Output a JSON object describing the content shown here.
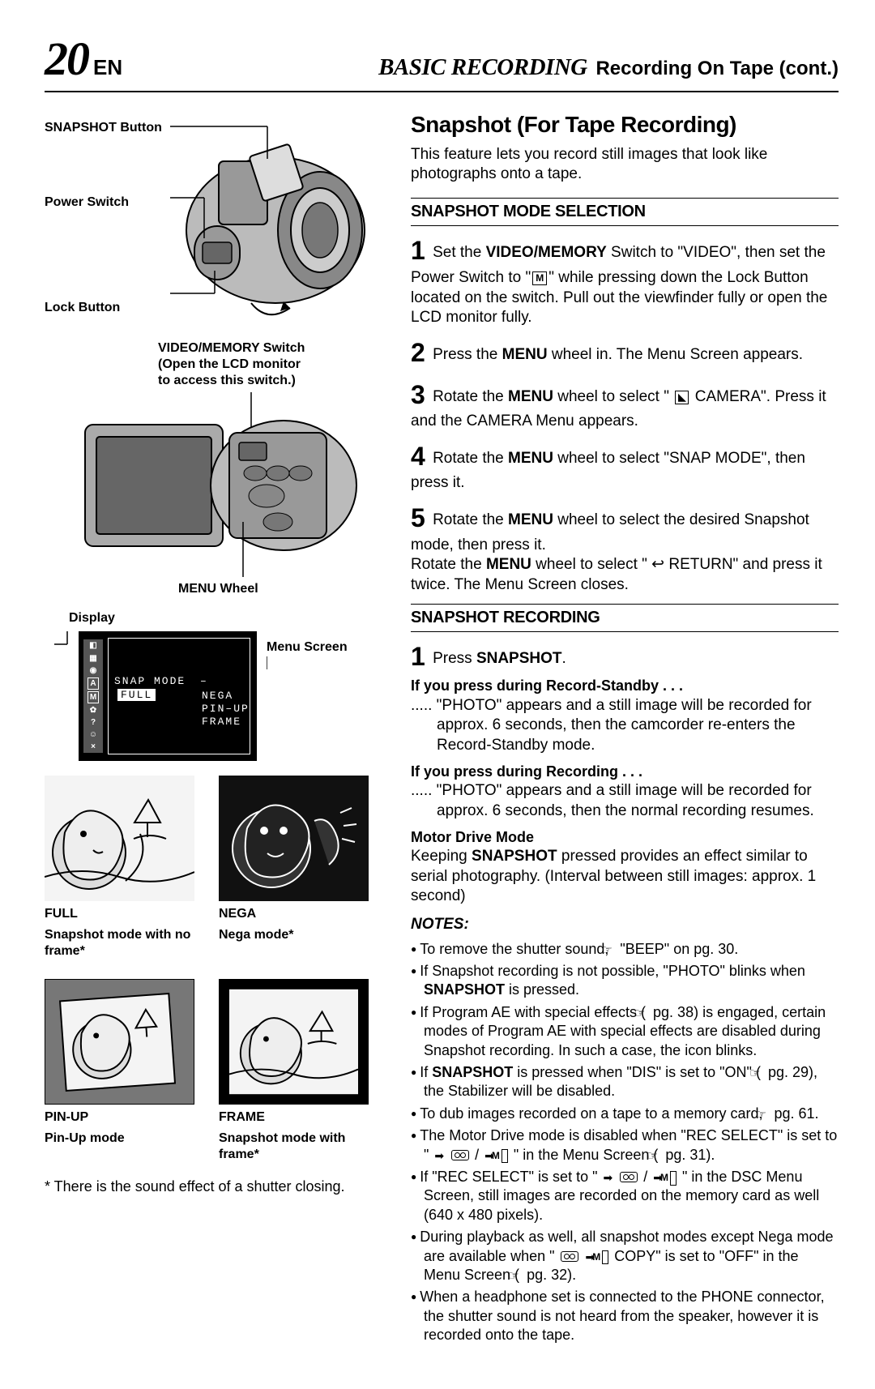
{
  "header": {
    "page_number": "20",
    "page_lang": "EN",
    "title_italic": "BASIC RECORDING",
    "title_rest": "Recording On Tape (cont.)"
  },
  "left": {
    "callout_snapshot_btn": "SNAPSHOT Button",
    "callout_power_switch": "Power Switch",
    "callout_lock_button": "Lock Button",
    "callout_vm_switch_1": "VIDEO/MEMORY Switch",
    "callout_vm_switch_2": "(Open the LCD monitor",
    "callout_vm_switch_3": "to access this switch.)",
    "callout_menu_wheel": "MENU Wheel",
    "display_label": "Display",
    "menu_screen_label": "Menu Screen",
    "menu": {
      "snap_mode": "SNAP MODE",
      "dash": "–",
      "options": [
        "FULL",
        "NEGA",
        "PIN–UP",
        "FRAME"
      ],
      "side_icons": [
        "◧",
        "▦",
        "◉",
        "A",
        "M",
        "✿",
        "?",
        "☺",
        "×"
      ]
    },
    "thumbs": [
      {
        "name": "full",
        "caption_1": "FULL",
        "caption_2": "Snapshot mode with no frame*",
        "invert": false,
        "frame": false
      },
      {
        "name": "nega",
        "caption_1": "NEGA",
        "caption_2": "Nega mode*",
        "invert": true,
        "frame": false
      },
      {
        "name": "pinup",
        "caption_1": "PIN-UP",
        "caption_2": "Pin-Up mode",
        "invert": false,
        "frame": false,
        "offset": true
      },
      {
        "name": "frame",
        "caption_1": "FRAME",
        "caption_2": "Snapshot mode with frame*",
        "invert": false,
        "frame": true
      }
    ],
    "footnote": "* There is the sound effect of a shutter closing."
  },
  "right": {
    "section_title": "Snapshot (For Tape Recording)",
    "intro": "This feature lets you record still images that look like photographs onto a tape.",
    "sub1": "SNAPSHOT MODE SELECTION",
    "step1_a": "Set the ",
    "step1_b": "VIDEO/MEMORY",
    "step1_c": " Switch to \"VIDEO\", then set the Power Switch to \"",
    "step1_d": "M",
    "step1_e": "\" while pressing down the Lock Button located on the switch. Pull out the viewfinder fully or open the LCD monitor fully.",
    "step2_a": "Press the ",
    "step2_b": "MENU",
    "step2_c": " wheel in. The Menu Screen appears.",
    "step3_a": "Rotate the ",
    "step3_b": "MENU",
    "step3_c": " wheel to select \" ",
    "step3_d": "CAMERA\". Press it and the CAMERA Menu appears.",
    "step4_a": "Rotate the ",
    "step4_b": "MENU",
    "step4_c": " wheel to select \"SNAP MODE\", then press it.",
    "step5_a": "Rotate the ",
    "step5_b": "MENU",
    "step5_c": " wheel to select the desired Snapshot mode, then press it.",
    "step5_d": "Rotate the ",
    "step5_e": "MENU",
    "step5_f": " wheel to select \" ",
    "step5_g": " RETURN\" and press it twice. The Menu Screen closes.",
    "sub2": "SNAPSHOT RECORDING",
    "rec1_a": "Press ",
    "rec1_b": "SNAPSHOT",
    "rec1_c": ".",
    "standby_h": "If you press during Record-Standby . . .",
    "standby_p": "..... \"PHOTO\" appears and a still image will be recorded for approx. 6 seconds, then the camcorder re-enters the Record-Standby mode.",
    "recording_h": "If you press during Recording . . .",
    "recording_p": "..... \"PHOTO\" appears and a still image will be recorded for approx. 6 seconds, then the normal recording resumes.",
    "motor_h": "Motor Drive Mode",
    "motor_p1": "Keeping ",
    "motor_p2": "SNAPSHOT",
    "motor_p3": " pressed provides an effect similar to serial photography. (Interval between still images: approx. 1 second)",
    "notes_header": "NOTES:",
    "notes": [
      "To remove the shutter sound, ☞ \"BEEP\" on pg. 30.",
      "If Snapshot recording is not possible, \"PHOTO\" blinks when <b>SNAPSHOT</b> is pressed.",
      "If Program AE with special effects (☞ pg. 38) is engaged, certain modes of Program AE with special effects are disabled during Snapshot recording. In such a case, the icon blinks.",
      "If <b>SNAPSHOT</b> is pressed when \"DIS\" is set to \"ON\" (☞ pg. 29), the Stabilizer will be disabled.",
      "To dub images recorded on a tape to a memory card, ☞ pg. 61.",
      "The Motor Drive mode is disabled when \"REC SELECT\" is set to \" ➡ <TAPE> / ➡ <MBOX> \" in the Menu Screen (☞ pg. 31).",
      "If \"REC SELECT\" is set to \" ➡ <TAPE> / ➡ <MBOX> \" in the DSC Menu Screen, still images are recorded on the memory card as well (640 x 480 pixels).",
      "During playback as well, all snapshot modes except Nega mode are available when \" <TAPE> ➡ <MBOX> COPY\" is set to \"OFF\" in the Menu Screen (☞ pg. 32).",
      "When a headphone set is connected to the PHONE connector, the shutter sound is not heard from the speaker, however it is recorded onto the tape."
    ]
  }
}
